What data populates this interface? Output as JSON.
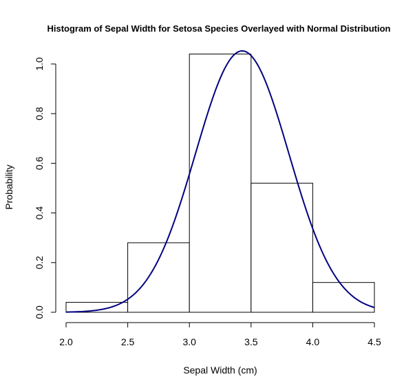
{
  "chart_data": {
    "type": "histogram",
    "title": "Histogram of Sepal Width for Setosa Species Overlayed with Normal Distribution",
    "xlabel": "Sepal Width (cm)",
    "ylabel": "Probability",
    "xlim": [
      2.0,
      4.5
    ],
    "ylim": [
      0,
      1.05
    ],
    "xticks": [
      "2.0",
      "2.5",
      "3.0",
      "3.5",
      "4.0",
      "4.5"
    ],
    "yticks": [
      "0.0",
      "0.2",
      "0.4",
      "0.6",
      "0.8",
      "1.0"
    ],
    "bins": [
      {
        "start": 2.0,
        "end": 2.5,
        "density": 0.04
      },
      {
        "start": 2.5,
        "end": 3.0,
        "density": 0.28
      },
      {
        "start": 3.0,
        "end": 3.5,
        "density": 1.04
      },
      {
        "start": 3.5,
        "end": 4.0,
        "density": 0.52
      },
      {
        "start": 4.0,
        "end": 4.5,
        "density": 0.12
      }
    ],
    "normal_curve": {
      "mean": 3.428,
      "sd": 0.379,
      "color": "#000080"
    },
    "grid": false,
    "legend": "none"
  }
}
